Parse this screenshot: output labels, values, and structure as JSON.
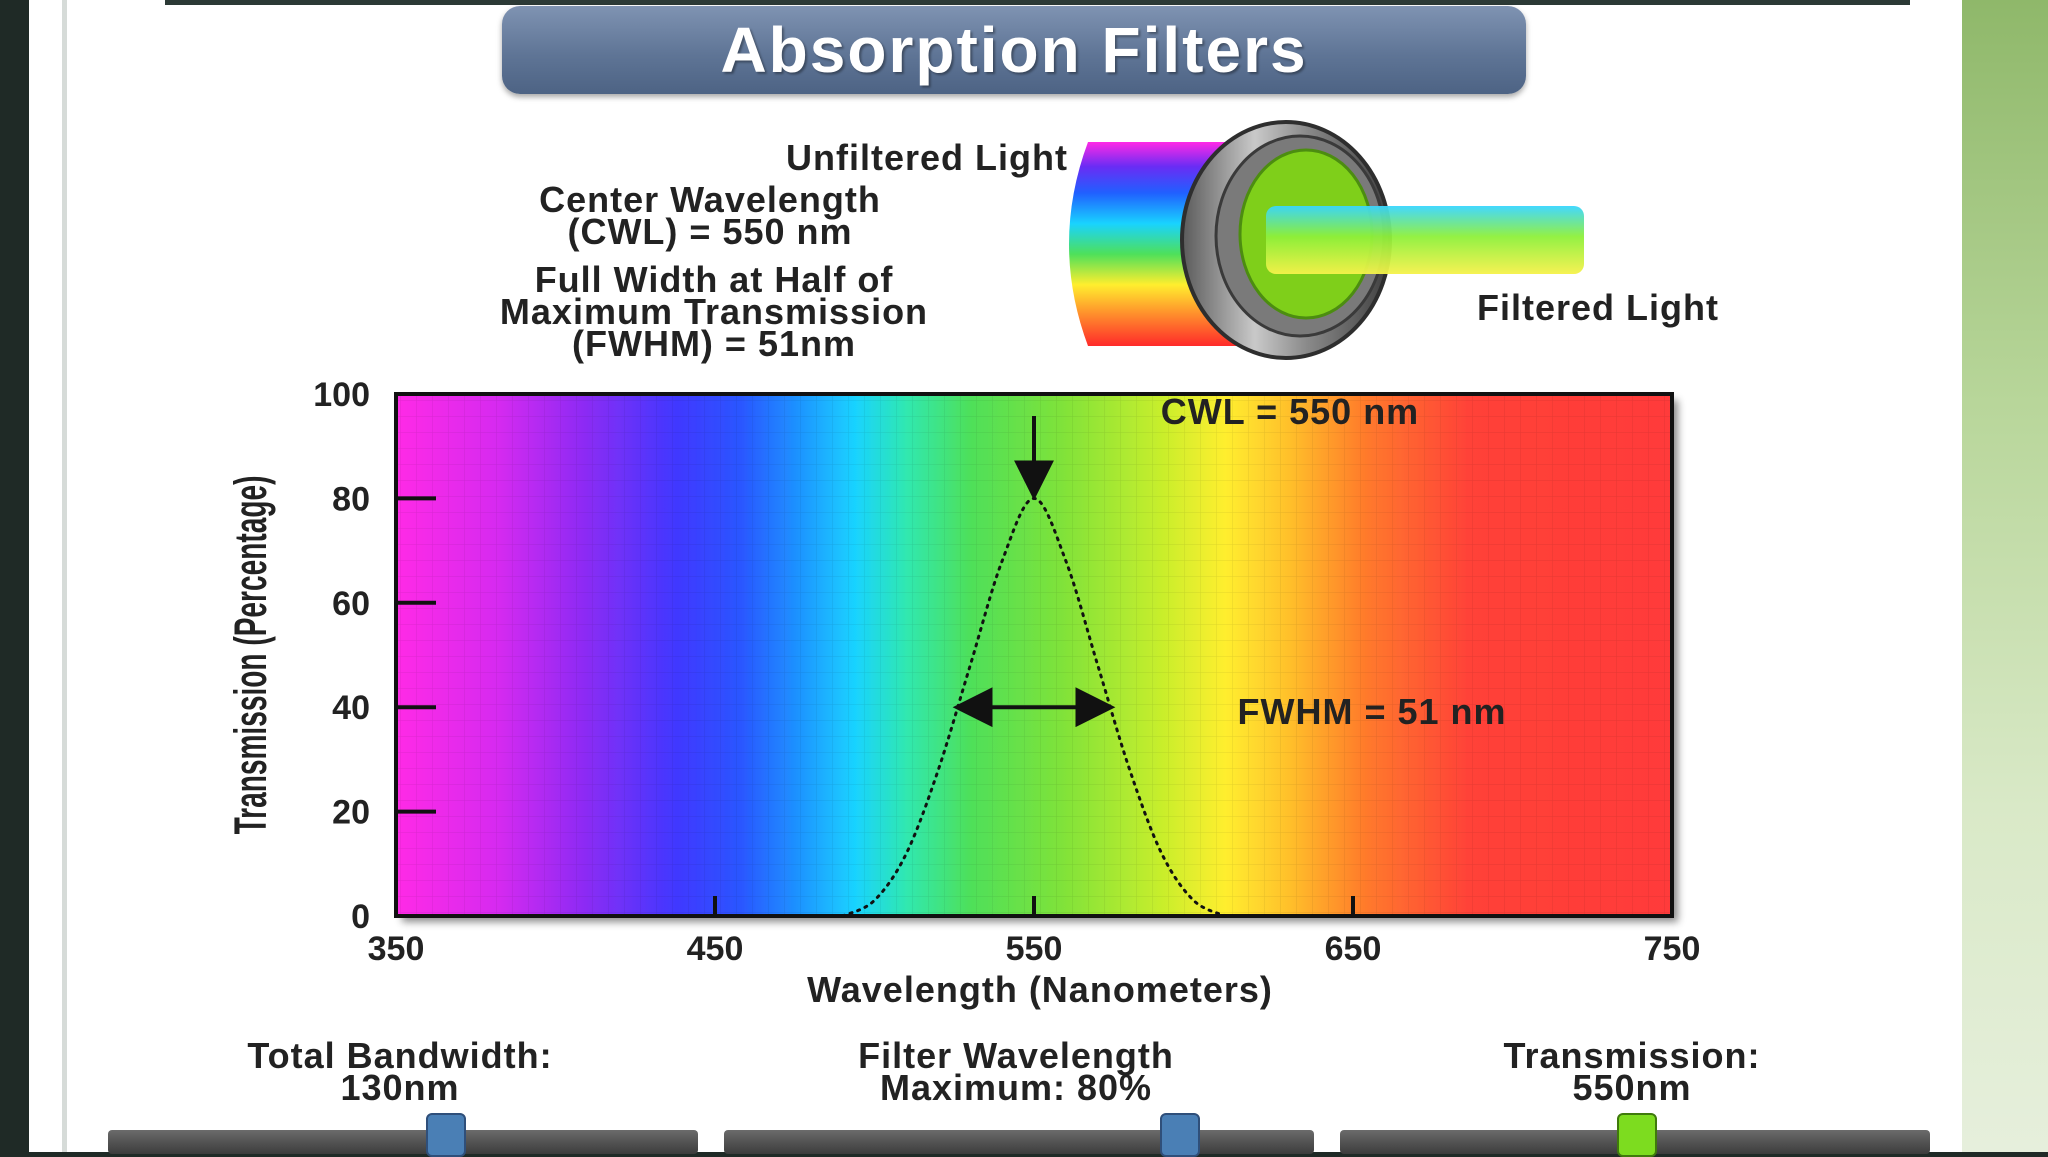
{
  "title": "Absorption Filters",
  "diagram": {
    "unfiltered_label": "Unfiltered Light",
    "cwl_label_line1": "Center Wavelength",
    "cwl_label_line2": "(CWL) = 550 nm",
    "fwhm_label_line1": "Full Width at Half of",
    "fwhm_label_line2": "Maximum Transmission",
    "fwhm_label_line3": "(FWHM) = 51nm",
    "filtered_label": "Filtered Light"
  },
  "chart_data": {
    "type": "line",
    "xlabel": "Wavelength (Nanometers)",
    "ylabel": "Transmission (Percentage)",
    "xlim": [
      350,
      750
    ],
    "ylim": [
      0,
      100
    ],
    "x_ticks": [
      "350",
      "450",
      "550",
      "650",
      "750"
    ],
    "y_ticks": [
      "0",
      "20",
      "40",
      "60",
      "80",
      "100"
    ],
    "background": "visible spectrum gradient",
    "series": [
      {
        "style": "dotted",
        "x": [
          490,
          500,
          510,
          520,
          530,
          540,
          550,
          560,
          570,
          580,
          590,
          600,
          610
        ],
        "y": [
          0,
          3,
          12,
          28,
          48,
          68,
          80,
          68,
          48,
          28,
          12,
          3,
          0
        ]
      }
    ],
    "annotations": {
      "cwl": "CWL = 550 nm",
      "fwhm": "FWHM = 51 nm"
    }
  },
  "controls": {
    "bandwidth_line1": "Total Bandwidth:",
    "bandwidth_line2": "130nm",
    "wavelength_line1": "Filter Wavelength",
    "wavelength_line2": "Maximum: 80%",
    "transmission_line1": "Transmission:",
    "transmission_line2": "550nm",
    "bandwidth_level": 0.57,
    "wavelength_level": 0.77,
    "transmission_level": 0.5,
    "thumb_blue": "#4a7fb5",
    "thumb_green": "#7ddc1f"
  }
}
